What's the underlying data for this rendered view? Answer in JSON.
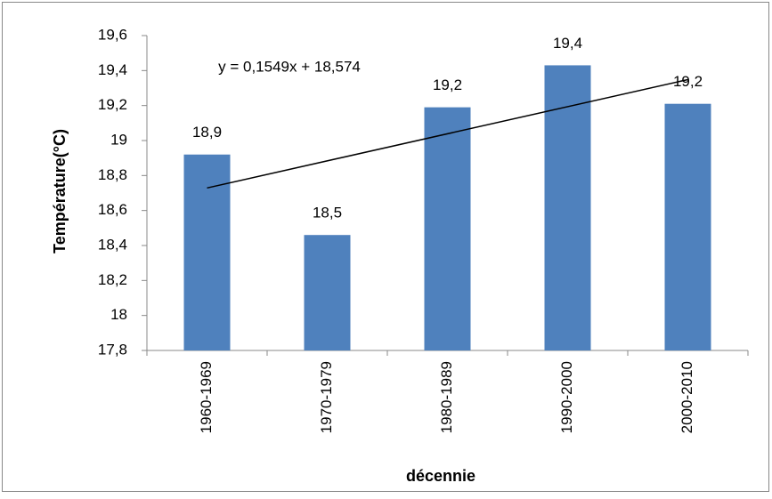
{
  "chart_data": {
    "type": "bar",
    "x_label": "décennie",
    "y_label": "Température(°C)",
    "categories": [
      "1960-1969",
      "1970-1979",
      "1980-1989",
      "1990-2000",
      "2000-2010"
    ],
    "values": [
      18.92,
      18.46,
      19.19,
      19.43,
      19.21
    ],
    "value_labels": [
      "18,9",
      "18,5",
      "19,2",
      "19,4",
      "19,2"
    ],
    "color": "#4f81bd",
    "ylim": [
      17.8,
      19.6
    ],
    "yticks": [
      {
        "value": 17.8,
        "label": "17,8"
      },
      18,
      {
        "value": 18.2,
        "label": "18,2"
      },
      {
        "value": 18.4,
        "label": "18,4"
      },
      {
        "value": 18.6,
        "label": "18,6"
      },
      {
        "value": 18.8,
        "label": "18,8"
      },
      19,
      {
        "value": 19.2,
        "label": "19,2"
      },
      {
        "value": 19.4,
        "label": "19,4"
      },
      {
        "value": 19.6,
        "label": "19,6"
      }
    ],
    "grid": false,
    "trendline": {
      "label": "y = 0,1549x + 18,574",
      "slope": 0.1549,
      "intercept": 18.574,
      "color": "#000000"
    }
  }
}
